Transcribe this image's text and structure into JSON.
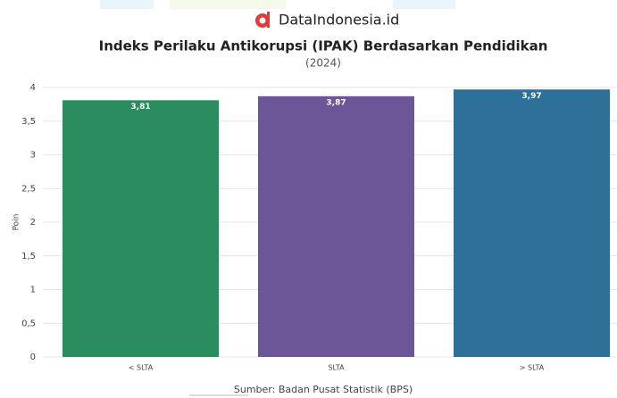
{
  "brand": "DataIndonesia.id",
  "chart_data": {
    "type": "bar",
    "title": "Indeks Perilaku Antikorupsi (IPAK) Berdasarkan Pendidikan",
    "subtitle": "(2024)",
    "y_label": "Poin",
    "source": "Sumber: Badan Pusat Statistik (BPS)",
    "categories": [
      "< SLTA",
      "SLTA",
      "> SLTA"
    ],
    "values": [
      3.81,
      3.87,
      3.97
    ],
    "value_labels": [
      "3,81",
      "3,87",
      "3,97"
    ],
    "colors": [
      "#2a8c5f",
      "#6c5698",
      "#2e7098"
    ],
    "ylim": [
      0,
      4
    ],
    "yticks": [
      0,
      {
        "value": 0.5,
        "label": "0,5"
      },
      1,
      {
        "value": 1.5,
        "label": "1,5"
      },
      2,
      {
        "value": 2.5,
        "label": "2,5"
      },
      3,
      {
        "value": 3.5,
        "label": "3,5"
      },
      4
    ],
    "grid": true
  }
}
